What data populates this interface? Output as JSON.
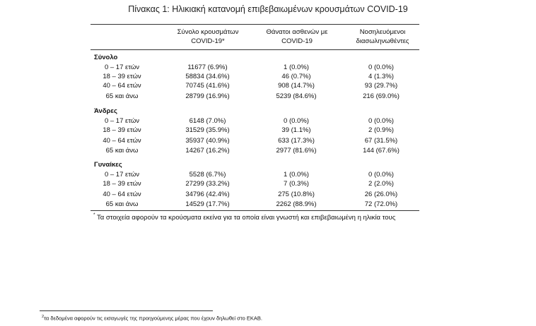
{
  "title": "Πίνακας 1: Ηλικιακή κατανομή επιβεβαιωμένων κρουσμάτων COVID-19",
  "headers": {
    "col1_line1": "Σύνολο κρουσμάτων",
    "col1_line2": "COVID-19*",
    "col2_line1": "Θάνατοι ασθενών με",
    "col2_line2": "COVID-19",
    "col3_line1": "Νοσηλευόμενοι",
    "col3_line2": "διασωληνωθέντες"
  },
  "sections": [
    {
      "name": "Σύνολο",
      "rows": [
        {
          "age": "0 – 17 ετών",
          "cases": "11677 (6.9%)",
          "deaths": "1 (0.0%)",
          "intubated": "0 (0.0%)"
        },
        {
          "age": "18 – 39 ετών",
          "cases": "58834 (34.6%)",
          "deaths": "46 (0.7%)",
          "intubated": "4 (1.3%)"
        },
        {
          "age": "40 – 64 ετών",
          "cases": "70745 (41.6%)",
          "deaths": "908 (14.7%)",
          "intubated": "93 (29.7%)"
        },
        {
          "age": "65 και άνω",
          "cases": "28799 (16.9%)",
          "deaths": "5239 (84.6%)",
          "intubated": "216 (69.0%)"
        }
      ]
    },
    {
      "name": "Άνδρες",
      "rows": [
        {
          "age": "0 – 17 ετών",
          "cases": "6148 (7.0%)",
          "deaths": "0 (0.0%)",
          "intubated": "0 (0.0%)"
        },
        {
          "age": "18 – 39 ετών",
          "cases": "31529 (35.9%)",
          "deaths": "39 (1.1%)",
          "intubated": "2 (0.9%)"
        },
        {
          "age": "40 – 64 ετών",
          "cases": "35937 (40.9%)",
          "deaths": "633 (17.3%)",
          "intubated": "67 (31.5%)"
        },
        {
          "age": "65 και άνω",
          "cases": "14267 (16.2%)",
          "deaths": "2977 (81.6%)",
          "intubated": "144 (67.6%)"
        }
      ]
    },
    {
      "name": "Γυναίκες",
      "rows": [
        {
          "age": "0 – 17 ετών",
          "cases": "5528 (6.7%)",
          "deaths": "1 (0.0%)",
          "intubated": "0 (0.0%)"
        },
        {
          "age": "18 – 39 ετών",
          "cases": "27299 (33.2%)",
          "deaths": "7 (0.3%)",
          "intubated": "2 (2.0%)"
        },
        {
          "age": "40 – 64 ετών",
          "cases": "34796 (42.4%)",
          "deaths": "275 (10.8%)",
          "intubated": "26 (26.0%)"
        },
        {
          "age": "65 και άνω",
          "cases": "14529 (17.7%)",
          "deaths": "2262 (88.9%)",
          "intubated": "72 (72.0%)"
        }
      ]
    }
  ],
  "note": {
    "marker": "*",
    "text": " Τα στοιχεία αφορούν τα κρούσματα εκείνα για τα οποία είναι γνωστή και επιβεβαιωμένη η ηλικία τους"
  },
  "footnote": {
    "marker": "2",
    "text": "τα δεδομένα αφορούν τις εισαγωγές της προηγούμενης μέρας που έχουν δηλωθεί στο ΕΚΑΒ."
  }
}
